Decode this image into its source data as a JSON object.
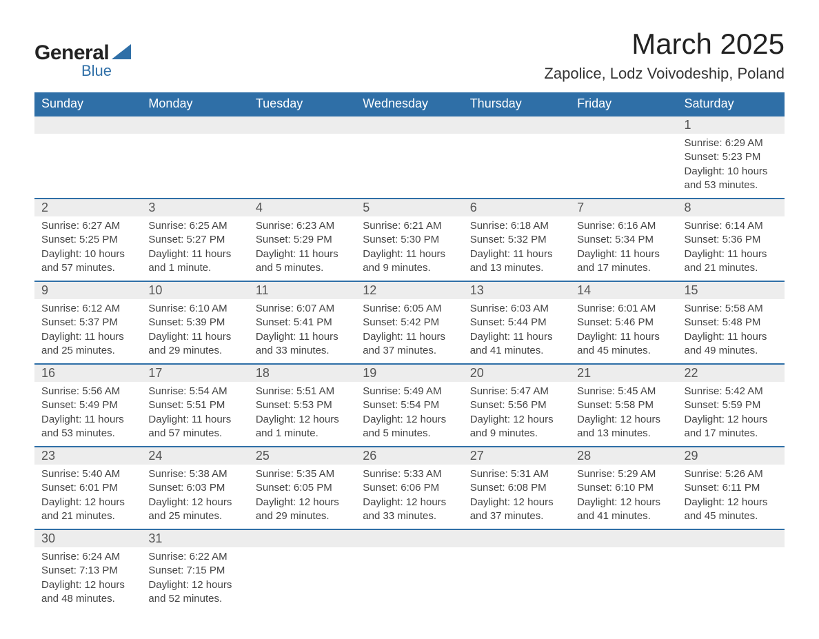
{
  "brand": {
    "name_part1": "General",
    "name_part2": "Blue",
    "accent_color": "#2f6fa7",
    "text_color": "#222222"
  },
  "header": {
    "month_title": "March 2025",
    "location": "Zapolice, Lodz Voivodeship, Poland"
  },
  "calendar": {
    "type": "table",
    "header_bg": "#2f6fa7",
    "header_text_color": "#ffffff",
    "daynum_bg": "#ededed",
    "row_divider_color": "#2f6fa7",
    "body_text_color": "#444444",
    "columns": [
      "Sunday",
      "Monday",
      "Tuesday",
      "Wednesday",
      "Thursday",
      "Friday",
      "Saturday"
    ],
    "weeks": [
      [
        null,
        null,
        null,
        null,
        null,
        null,
        {
          "n": "1",
          "sunrise": "Sunrise: 6:29 AM",
          "sunset": "Sunset: 5:23 PM",
          "day1": "Daylight: 10 hours",
          "day2": "and 53 minutes."
        }
      ],
      [
        {
          "n": "2",
          "sunrise": "Sunrise: 6:27 AM",
          "sunset": "Sunset: 5:25 PM",
          "day1": "Daylight: 10 hours",
          "day2": "and 57 minutes."
        },
        {
          "n": "3",
          "sunrise": "Sunrise: 6:25 AM",
          "sunset": "Sunset: 5:27 PM",
          "day1": "Daylight: 11 hours",
          "day2": "and 1 minute."
        },
        {
          "n": "4",
          "sunrise": "Sunrise: 6:23 AM",
          "sunset": "Sunset: 5:29 PM",
          "day1": "Daylight: 11 hours",
          "day2": "and 5 minutes."
        },
        {
          "n": "5",
          "sunrise": "Sunrise: 6:21 AM",
          "sunset": "Sunset: 5:30 PM",
          "day1": "Daylight: 11 hours",
          "day2": "and 9 minutes."
        },
        {
          "n": "6",
          "sunrise": "Sunrise: 6:18 AM",
          "sunset": "Sunset: 5:32 PM",
          "day1": "Daylight: 11 hours",
          "day2": "and 13 minutes."
        },
        {
          "n": "7",
          "sunrise": "Sunrise: 6:16 AM",
          "sunset": "Sunset: 5:34 PM",
          "day1": "Daylight: 11 hours",
          "day2": "and 17 minutes."
        },
        {
          "n": "8",
          "sunrise": "Sunrise: 6:14 AM",
          "sunset": "Sunset: 5:36 PM",
          "day1": "Daylight: 11 hours",
          "day2": "and 21 minutes."
        }
      ],
      [
        {
          "n": "9",
          "sunrise": "Sunrise: 6:12 AM",
          "sunset": "Sunset: 5:37 PM",
          "day1": "Daylight: 11 hours",
          "day2": "and 25 minutes."
        },
        {
          "n": "10",
          "sunrise": "Sunrise: 6:10 AM",
          "sunset": "Sunset: 5:39 PM",
          "day1": "Daylight: 11 hours",
          "day2": "and 29 minutes."
        },
        {
          "n": "11",
          "sunrise": "Sunrise: 6:07 AM",
          "sunset": "Sunset: 5:41 PM",
          "day1": "Daylight: 11 hours",
          "day2": "and 33 minutes."
        },
        {
          "n": "12",
          "sunrise": "Sunrise: 6:05 AM",
          "sunset": "Sunset: 5:42 PM",
          "day1": "Daylight: 11 hours",
          "day2": "and 37 minutes."
        },
        {
          "n": "13",
          "sunrise": "Sunrise: 6:03 AM",
          "sunset": "Sunset: 5:44 PM",
          "day1": "Daylight: 11 hours",
          "day2": "and 41 minutes."
        },
        {
          "n": "14",
          "sunrise": "Sunrise: 6:01 AM",
          "sunset": "Sunset: 5:46 PM",
          "day1": "Daylight: 11 hours",
          "day2": "and 45 minutes."
        },
        {
          "n": "15",
          "sunrise": "Sunrise: 5:58 AM",
          "sunset": "Sunset: 5:48 PM",
          "day1": "Daylight: 11 hours",
          "day2": "and 49 minutes."
        }
      ],
      [
        {
          "n": "16",
          "sunrise": "Sunrise: 5:56 AM",
          "sunset": "Sunset: 5:49 PM",
          "day1": "Daylight: 11 hours",
          "day2": "and 53 minutes."
        },
        {
          "n": "17",
          "sunrise": "Sunrise: 5:54 AM",
          "sunset": "Sunset: 5:51 PM",
          "day1": "Daylight: 11 hours",
          "day2": "and 57 minutes."
        },
        {
          "n": "18",
          "sunrise": "Sunrise: 5:51 AM",
          "sunset": "Sunset: 5:53 PM",
          "day1": "Daylight: 12 hours",
          "day2": "and 1 minute."
        },
        {
          "n": "19",
          "sunrise": "Sunrise: 5:49 AM",
          "sunset": "Sunset: 5:54 PM",
          "day1": "Daylight: 12 hours",
          "day2": "and 5 minutes."
        },
        {
          "n": "20",
          "sunrise": "Sunrise: 5:47 AM",
          "sunset": "Sunset: 5:56 PM",
          "day1": "Daylight: 12 hours",
          "day2": "and 9 minutes."
        },
        {
          "n": "21",
          "sunrise": "Sunrise: 5:45 AM",
          "sunset": "Sunset: 5:58 PM",
          "day1": "Daylight: 12 hours",
          "day2": "and 13 minutes."
        },
        {
          "n": "22",
          "sunrise": "Sunrise: 5:42 AM",
          "sunset": "Sunset: 5:59 PM",
          "day1": "Daylight: 12 hours",
          "day2": "and 17 minutes."
        }
      ],
      [
        {
          "n": "23",
          "sunrise": "Sunrise: 5:40 AM",
          "sunset": "Sunset: 6:01 PM",
          "day1": "Daylight: 12 hours",
          "day2": "and 21 minutes."
        },
        {
          "n": "24",
          "sunrise": "Sunrise: 5:38 AM",
          "sunset": "Sunset: 6:03 PM",
          "day1": "Daylight: 12 hours",
          "day2": "and 25 minutes."
        },
        {
          "n": "25",
          "sunrise": "Sunrise: 5:35 AM",
          "sunset": "Sunset: 6:05 PM",
          "day1": "Daylight: 12 hours",
          "day2": "and 29 minutes."
        },
        {
          "n": "26",
          "sunrise": "Sunrise: 5:33 AM",
          "sunset": "Sunset: 6:06 PM",
          "day1": "Daylight: 12 hours",
          "day2": "and 33 minutes."
        },
        {
          "n": "27",
          "sunrise": "Sunrise: 5:31 AM",
          "sunset": "Sunset: 6:08 PM",
          "day1": "Daylight: 12 hours",
          "day2": "and 37 minutes."
        },
        {
          "n": "28",
          "sunrise": "Sunrise: 5:29 AM",
          "sunset": "Sunset: 6:10 PM",
          "day1": "Daylight: 12 hours",
          "day2": "and 41 minutes."
        },
        {
          "n": "29",
          "sunrise": "Sunrise: 5:26 AM",
          "sunset": "Sunset: 6:11 PM",
          "day1": "Daylight: 12 hours",
          "day2": "and 45 minutes."
        }
      ],
      [
        {
          "n": "30",
          "sunrise": "Sunrise: 6:24 AM",
          "sunset": "Sunset: 7:13 PM",
          "day1": "Daylight: 12 hours",
          "day2": "and 48 minutes."
        },
        {
          "n": "31",
          "sunrise": "Sunrise: 6:22 AM",
          "sunset": "Sunset: 7:15 PM",
          "day1": "Daylight: 12 hours",
          "day2": "and 52 minutes."
        },
        null,
        null,
        null,
        null,
        null
      ]
    ]
  }
}
